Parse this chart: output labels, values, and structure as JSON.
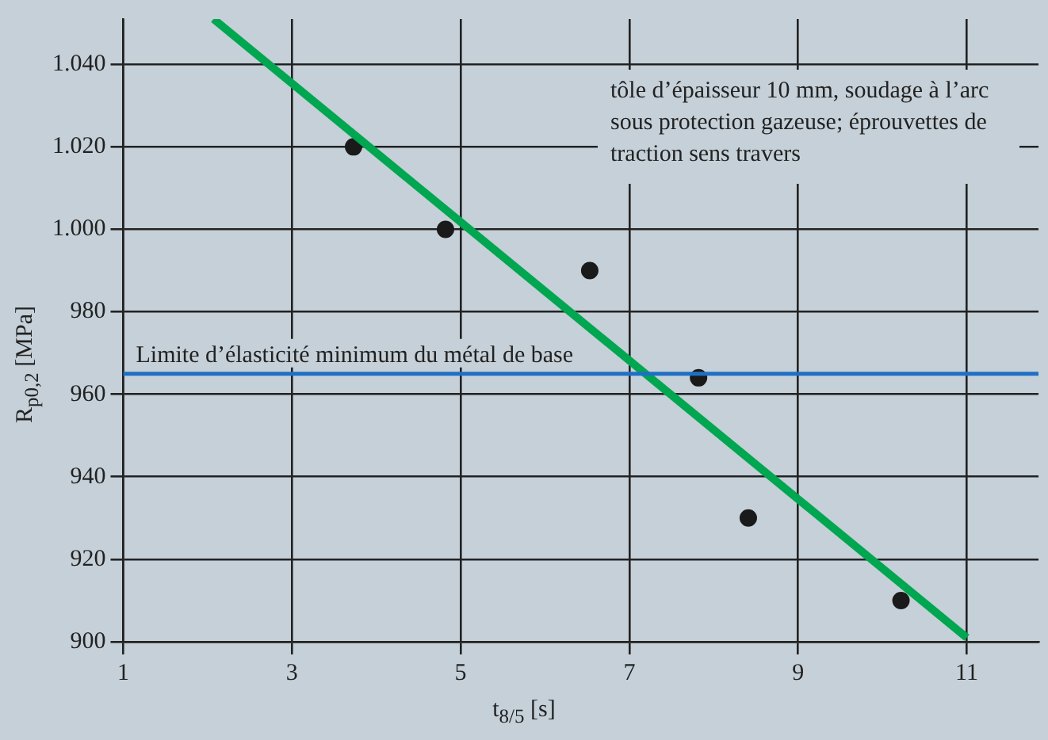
{
  "chart_data": {
    "type": "scatter",
    "xlabel": "t$_{8/5}$ [s]",
    "ylabel": "R$_{p0,2}$ [MPa]",
    "xlim": [
      1,
      11.85
    ],
    "ylim": [
      900,
      1051
    ],
    "xticks": [
      1,
      3,
      5,
      7,
      9,
      11
    ],
    "yticks": [
      900,
      920,
      940,
      960,
      980,
      {
        "value": 1000,
        "label": "1.000"
      },
      {
        "value": 1020,
        "label": "1.020"
      },
      {
        "value": 1040,
        "label": "1.040"
      }
    ],
    "grid": true,
    "legend": false,
    "marker": "circle",
    "series": [
      {
        "type": "scatter",
        "color": "#1a1a1a",
        "x": [
          3.73,
          4.82,
          6.53,
          7.82,
          8.41,
          10.22
        ],
        "values": [
          1020,
          1000,
          990,
          964,
          930,
          910
        ]
      },
      {
        "type": "line",
        "marker": "none",
        "color": "#00a650",
        "x": [
          2.07,
          11.0
        ],
        "values": [
          1051,
          901
        ]
      }
    ],
    "ref_lines": [
      {
        "axis": "y",
        "value": 965,
        "label": "Limite d’élasticité minimum du métal de base",
        "color": "#1f6fc5"
      }
    ],
    "annotations": [
      "tôle d’épaisseur 10 mm, soudage à l’arc sous protection gazeuse; éprouvettes de traction sens travers"
    ]
  }
}
